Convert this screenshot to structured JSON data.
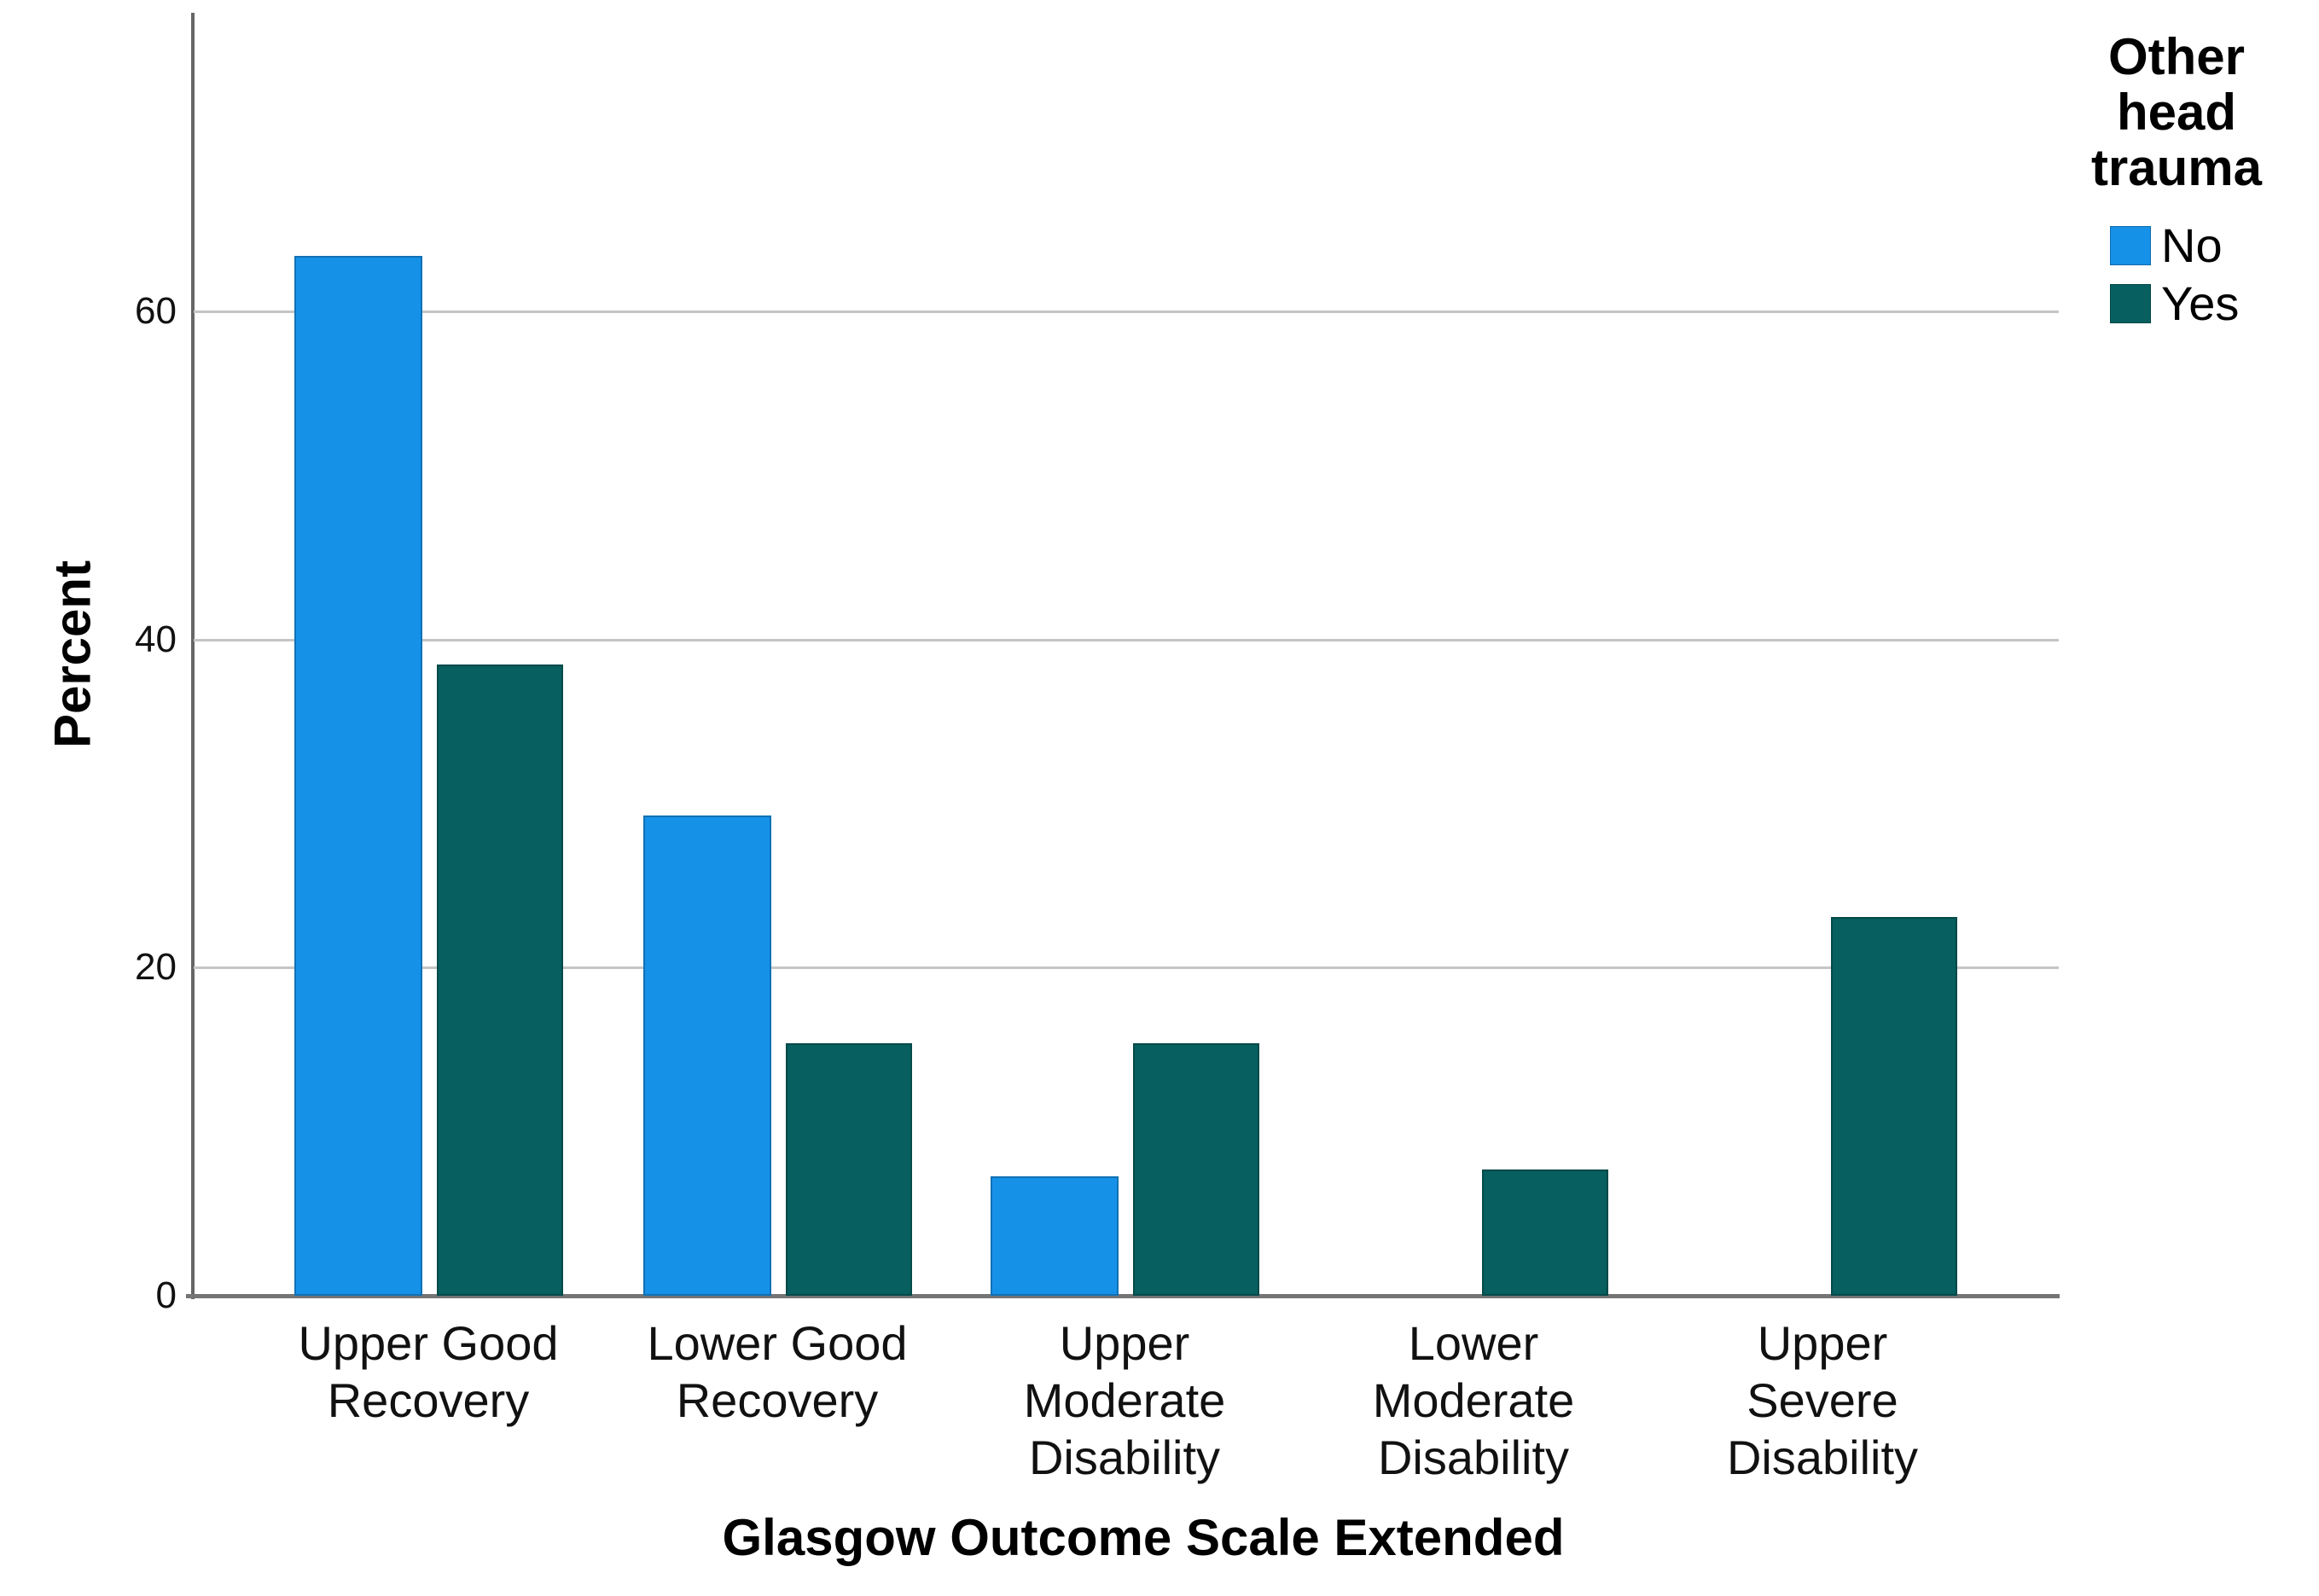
{
  "chart_data": {
    "type": "bar",
    "title": "",
    "xlabel": "Glasgow Outcome Scale Extended",
    "ylabel": "Percent",
    "categories": [
      "Upper Good Recovery",
      "Lower Good Recovery",
      "Upper Moderate Disability",
      "Lower Moderate Disability",
      "Upper Severe Disability"
    ],
    "category_lines": [
      [
        "Upper Good",
        "Recovery"
      ],
      [
        "Lower Good",
        "Recovery"
      ],
      [
        "Upper",
        "Moderate",
        "Disability"
      ],
      [
        "Lower",
        "Moderate",
        "Disability"
      ],
      [
        "Upper",
        "Severe",
        "Disability"
      ]
    ],
    "series": [
      {
        "name": "No",
        "color": "#1691E8",
        "values": [
          63.4,
          29.3,
          7.3,
          0,
          0
        ]
      },
      {
        "name": "Yes",
        "color": "#075F5F",
        "values": [
          38.5,
          15.4,
          15.4,
          7.7,
          23.1
        ]
      }
    ],
    "yticks": [
      0,
      20,
      40,
      60
    ],
    "ylim": [
      0,
      78.2
    ],
    "grid": true,
    "legend": {
      "title": "Other head trauma",
      "title_lines": [
        "Other",
        "head",
        "trauma"
      ],
      "entries": [
        "No",
        "Yes"
      ],
      "position": "top-right"
    }
  },
  "colors": {
    "no_bar": "#1691E8",
    "yes_bar": "#075F5F",
    "gridline": "#c5c5c5",
    "axis_line": "#666666",
    "text": "#000000",
    "background": "#ffffff"
  }
}
